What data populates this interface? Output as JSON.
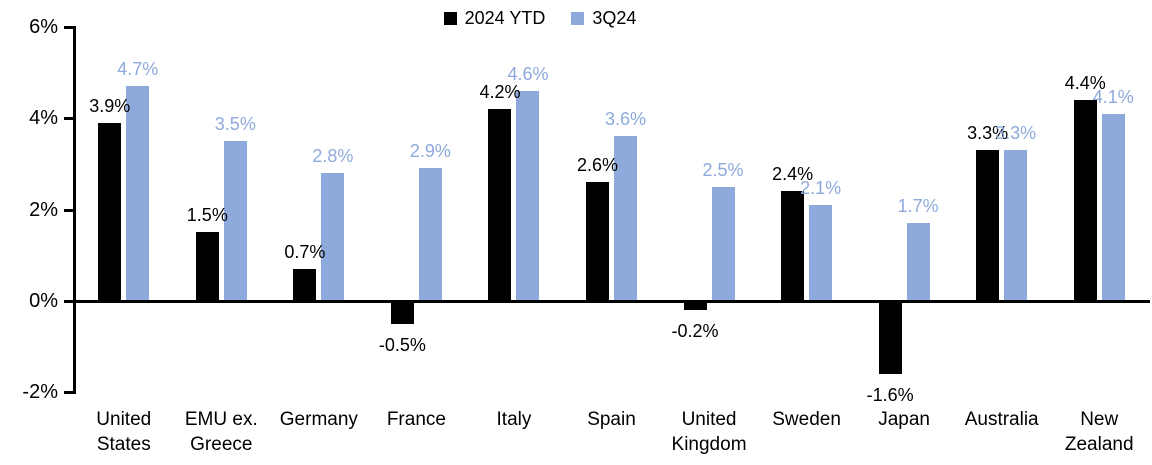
{
  "chart_data": {
    "type": "bar",
    "title": "",
    "xlabel": "",
    "ylabel": "",
    "unit": "%",
    "ylim": [
      -2,
      6
    ],
    "y_ticks": [
      6,
      4,
      2,
      0,
      -2
    ],
    "y_tick_labels": [
      "6%",
      "4%",
      "2%",
      "0%",
      "-2%"
    ],
    "grid": false,
    "legend_position": "top-center",
    "data_labels": "outside-end",
    "categories": [
      "United States",
      "EMU ex. Greece",
      "Germany",
      "France",
      "Italy",
      "Spain",
      "United Kingdom",
      "Sweden",
      "Japan",
      "Australia",
      "New Zealand"
    ],
    "series": [
      {
        "name": "2024 YTD",
        "color": "#000000",
        "values": [
          3.9,
          1.5,
          0.7,
          -0.5,
          4.2,
          2.6,
          -0.2,
          2.4,
          -1.6,
          3.3,
          4.4
        ],
        "labels": [
          "3.9%",
          "1.5%",
          "0.7%",
          "-0.5%",
          "4.2%",
          "2.6%",
          "-0.2%",
          "2.4%",
          "-1.6%",
          "3.3%",
          "4.4%"
        ]
      },
      {
        "name": "3Q24",
        "color": "#8EA9DB",
        "values": [
          4.7,
          3.5,
          2.8,
          2.9,
          4.6,
          3.6,
          2.5,
          2.1,
          1.7,
          3.3,
          4.1
        ],
        "labels": [
          "4.7%",
          "3.5%",
          "2.8%",
          "2.9%",
          "4.6%",
          "3.6%",
          "2.5%",
          "2.1%",
          "1.7%",
          "3.3%",
          "4.1%"
        ]
      }
    ]
  }
}
